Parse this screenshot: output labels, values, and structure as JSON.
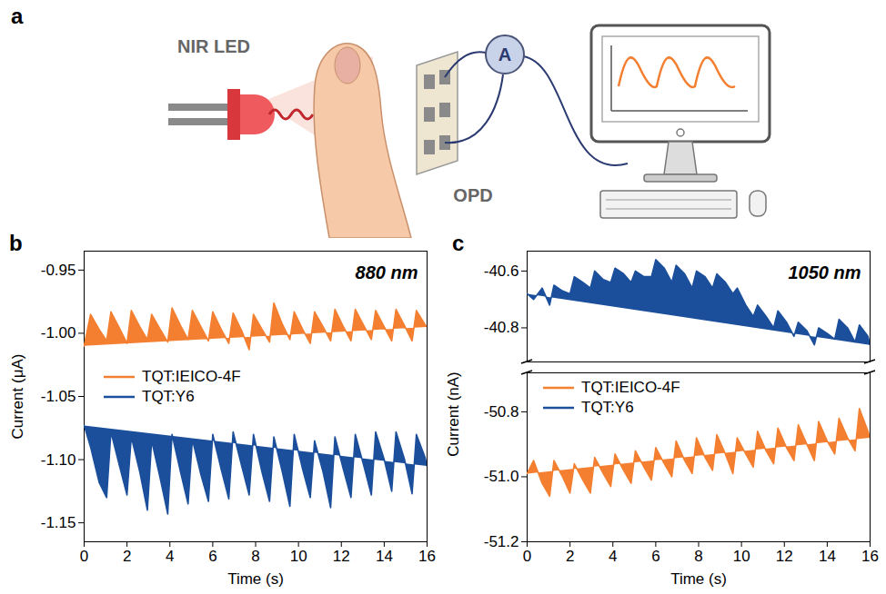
{
  "diagram": {
    "panel": "a",
    "labels": {
      "source": "NIR LED",
      "detector": "OPD",
      "meter": "A"
    }
  },
  "chart_data": [
    {
      "type": "line",
      "panel": "b",
      "annotation": "880 nm",
      "xlabel": "Time (s)",
      "ylabel": "Current (μA)",
      "xlim": [
        0,
        16
      ],
      "xticks": [
        0,
        2,
        4,
        6,
        8,
        10,
        12,
        14,
        16
      ],
      "ylim": [
        -1.165,
        -0.935
      ],
      "yticks": [
        -0.95,
        {
          "value": -1.0,
          "label": "-1.00"
        },
        -1.05,
        {
          "value": -1.1,
          "label": "-1.10"
        },
        -1.15
      ],
      "legend": "left",
      "x": [
        0,
        0.3,
        0.7,
        1.05,
        1.25,
        1.65,
        2.0,
        2.2,
        2.6,
        2.95,
        3.15,
        3.55,
        3.9,
        4.1,
        4.5,
        4.85,
        5.05,
        5.45,
        5.8,
        6.0,
        6.4,
        6.75,
        6.95,
        7.35,
        7.7,
        7.9,
        8.3,
        8.65,
        8.85,
        9.25,
        9.6,
        9.8,
        10.2,
        10.55,
        10.75,
        11.15,
        11.5,
        11.7,
        12.1,
        12.45,
        12.65,
        13.05,
        13.4,
        13.6,
        14.0,
        14.35,
        14.55,
        14.95,
        15.3,
        15.5,
        15.9,
        16.0
      ],
      "series": [
        {
          "name": "TQT:IEICO-4F",
          "color": "#f47f30",
          "values": [
            -1.01,
            -0.985,
            -0.997,
            -1.006,
            -0.983,
            -0.996,
            -1.008,
            -0.982,
            -0.995,
            -1.005,
            -0.985,
            -0.997,
            -1.007,
            -0.98,
            -0.994,
            -1.005,
            -0.982,
            -0.995,
            -1.006,
            -0.983,
            -0.997,
            -1.008,
            -0.984,
            -0.998,
            -1.013,
            -0.985,
            -0.997,
            -1.007,
            -0.976,
            -0.993,
            -1.005,
            -0.983,
            -0.997,
            -1.008,
            -0.983,
            -0.995,
            -1.006,
            -0.981,
            -0.995,
            -1.006,
            -0.981,
            -0.994,
            -1.005,
            -0.982,
            -0.995,
            -1.006,
            -0.981,
            -0.994,
            -1.006,
            -0.982,
            -0.993,
            -0.995
          ]
        },
        {
          "name": "TQT:Y6",
          "color": "#1b4f9c",
          "values": [
            -1.073,
            -1.09,
            -1.118,
            -1.13,
            -1.078,
            -1.105,
            -1.128,
            -1.082,
            -1.11,
            -1.14,
            -1.085,
            -1.115,
            -1.143,
            -1.08,
            -1.11,
            -1.135,
            -1.084,
            -1.112,
            -1.133,
            -1.08,
            -1.108,
            -1.131,
            -1.078,
            -1.105,
            -1.128,
            -1.08,
            -1.11,
            -1.133,
            -1.082,
            -1.11,
            -1.137,
            -1.08,
            -1.108,
            -1.13,
            -1.085,
            -1.11,
            -1.138,
            -1.082,
            -1.108,
            -1.13,
            -1.08,
            -1.105,
            -1.128,
            -1.078,
            -1.1,
            -1.125,
            -1.078,
            -1.1,
            -1.127,
            -1.08,
            -1.098,
            -1.105
          ]
        }
      ]
    },
    {
      "type": "line",
      "panel": "c",
      "annotation": "1050 nm",
      "xlabel": "Time (s)",
      "ylabel": "Current (nA)",
      "xlim": [
        0,
        16
      ],
      "xticks": [
        0,
        2,
        4,
        6,
        8,
        10,
        12,
        14,
        16
      ],
      "y_segments": [
        {
          "ylim": [
            -40.92,
            -40.53
          ],
          "yticks": [
            -40.6,
            -40.8
          ]
        },
        {
          "ylim": [
            -51.2,
            -50.68
          ],
          "yticks": [
            -50.8,
            {
              "value": -51,
              "label": "-51.0"
            },
            -51.2
          ]
        }
      ],
      "legend": "top-left",
      "x": [
        0,
        0.3,
        0.7,
        1.05,
        1.25,
        1.65,
        2.0,
        2.2,
        2.6,
        2.95,
        3.15,
        3.55,
        3.9,
        4.1,
        4.5,
        4.85,
        5.05,
        5.45,
        5.8,
        6.0,
        6.4,
        6.75,
        6.95,
        7.35,
        7.7,
        7.9,
        8.3,
        8.65,
        8.85,
        9.25,
        9.6,
        9.8,
        10.2,
        10.55,
        10.75,
        11.15,
        11.5,
        11.7,
        12.1,
        12.45,
        12.65,
        13.05,
        13.4,
        13.6,
        14.0,
        14.35,
        14.55,
        14.95,
        15.3,
        15.5,
        15.9,
        16.0
      ],
      "series": [
        {
          "name": "TQT:IEICO-4F",
          "color": "#f47f30",
          "segment": 1,
          "values": [
            -50.99,
            -50.95,
            -51.02,
            -51.06,
            -50.95,
            -51.0,
            -51.05,
            -50.96,
            -51.01,
            -51.05,
            -50.94,
            -50.99,
            -51.03,
            -50.93,
            -50.98,
            -51.02,
            -50.92,
            -50.97,
            -51.01,
            -50.91,
            -50.96,
            -51.0,
            -50.89,
            -50.95,
            -50.99,
            -50.88,
            -50.94,
            -50.98,
            -50.87,
            -50.93,
            -50.99,
            -50.88,
            -50.93,
            -50.97,
            -50.86,
            -50.92,
            -50.96,
            -50.85,
            -50.91,
            -50.95,
            -50.84,
            -50.9,
            -50.95,
            -50.83,
            -50.89,
            -50.93,
            -50.82,
            -50.88,
            -50.92,
            -50.79,
            -50.86,
            -50.88
          ]
        },
        {
          "name": "TQT:Y6",
          "color": "#1b4f9c",
          "segment": 0,
          "values": [
            -40.68,
            -40.7,
            -40.66,
            -40.72,
            -40.65,
            -40.67,
            -40.68,
            -40.62,
            -40.64,
            -40.66,
            -40.6,
            -40.63,
            -40.64,
            -40.59,
            -40.61,
            -40.64,
            -40.6,
            -40.62,
            -40.62,
            -40.56,
            -40.59,
            -40.64,
            -40.58,
            -40.61,
            -40.66,
            -40.6,
            -40.62,
            -40.66,
            -40.61,
            -40.64,
            -40.68,
            -40.66,
            -40.72,
            -40.76,
            -40.72,
            -40.76,
            -40.8,
            -40.74,
            -40.78,
            -40.83,
            -40.78,
            -40.81,
            -40.86,
            -40.8,
            -40.82,
            -40.84,
            -40.77,
            -40.8,
            -40.85,
            -40.79,
            -40.83,
            -40.86
          ]
        }
      ]
    }
  ]
}
